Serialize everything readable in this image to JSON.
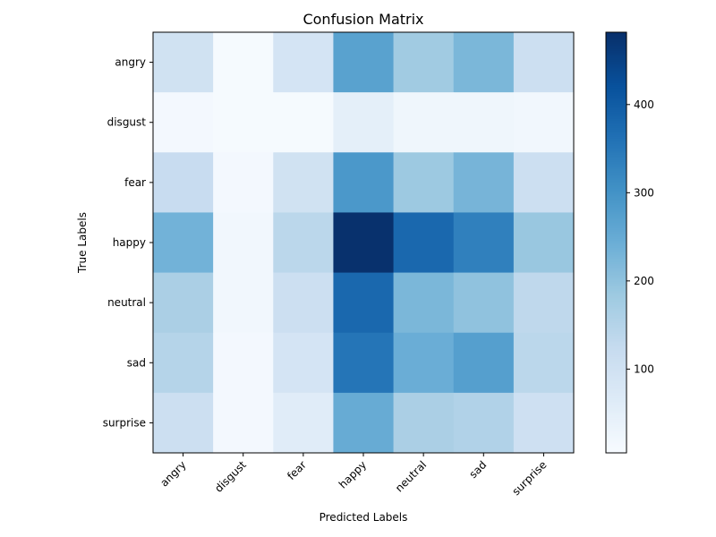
{
  "chart_data": {
    "type": "heatmap",
    "title": "Confusion Matrix",
    "xlabel": "Predicted Labels",
    "ylabel": "True Labels",
    "x_categories": [
      "angry",
      "disgust",
      "fear",
      "happy",
      "neutral",
      "sad",
      "surprise"
    ],
    "y_categories": [
      "angry",
      "disgust",
      "fear",
      "happy",
      "neutral",
      "sad",
      "surprise"
    ],
    "values": [
      [
        100,
        10,
        90,
        270,
        180,
        225,
        110
      ],
      [
        15,
        10,
        10,
        50,
        25,
        25,
        20
      ],
      [
        120,
        15,
        100,
        290,
        185,
        230,
        110
      ],
      [
        235,
        20,
        140,
        480,
        380,
        335,
        190
      ],
      [
        165,
        20,
        110,
        380,
        225,
        200,
        135
      ],
      [
        150,
        15,
        90,
        355,
        245,
        275,
        140
      ],
      [
        110,
        15,
        60,
        250,
        165,
        155,
        105
      ]
    ],
    "colorbar": {
      "min": 5,
      "max": 482,
      "ticks": [
        100,
        200,
        300,
        400
      ]
    },
    "colormap": "Blues"
  }
}
